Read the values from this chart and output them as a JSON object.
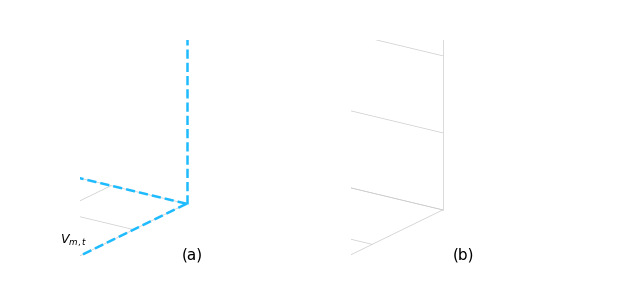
{
  "fig_width": 6.4,
  "fig_height": 3.02,
  "dpi": 100,
  "cyan": "#1EBBFF",
  "cyan_fill": "#D0F0FF",
  "blue_arrow": "#1560BD",
  "red_dot": "#EE1111",
  "grid_color": "#CCCCCC",
  "label_a": "(a)",
  "label_b": "(b)",
  "elev": 20,
  "azim_deg": -55
}
